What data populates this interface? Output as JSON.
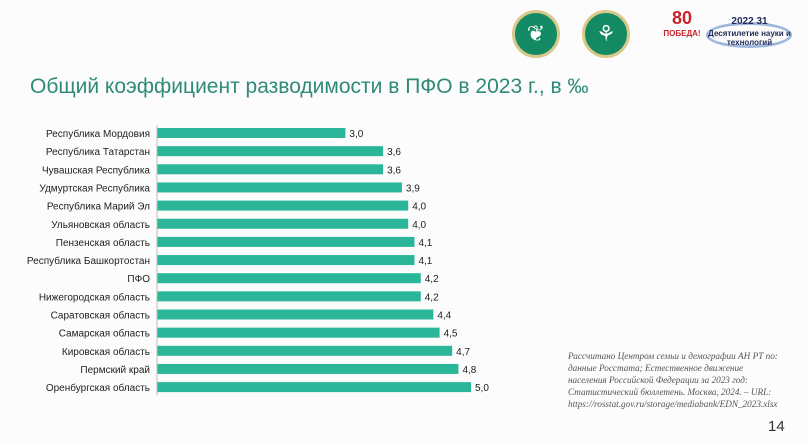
{
  "title": "Общий коэффициент разводимости в ПФО в 2023 г., в ‰",
  "logos": {
    "pobeda_number": "80",
    "pobeda_text": "ПОБЕДА!",
    "decade_years": "2022 31",
    "decade_text": "Десятилетие науки и технологий"
  },
  "chart_data": {
    "type": "bar",
    "orientation": "horizontal",
    "title": "Общий коэффициент разводимости в ПФО в 2023 г., в ‰",
    "categories": [
      "Республика Мордовия",
      "Республика Татарстан",
      "Чувашская Республика",
      "Удмуртская Республика",
      "Республика Марий Эл",
      "Ульяновская область",
      "Пензенская область",
      "Республика Башкортостан",
      "ПФО",
      "Нижегородская область",
      "Саратовская область",
      "Самарская область",
      "Кировская область",
      "Пермский край",
      "Оренбургская область"
    ],
    "values": [
      3.0,
      3.6,
      3.6,
      3.9,
      4.0,
      4.0,
      4.1,
      4.1,
      4.2,
      4.2,
      4.4,
      4.5,
      4.7,
      4.8,
      5.0
    ],
    "labels": [
      "3,0",
      "3,6",
      "3,6",
      "3,9",
      "4,0",
      "4,0",
      "4,1",
      "4,1",
      "4,2",
      "4,2",
      "4,4",
      "4,5",
      "4,7",
      "4,8",
      "5,0"
    ],
    "xlim": [
      0,
      5.0
    ],
    "grid": false,
    "color": "#2bb69a"
  },
  "source": "Рассчитано Центром семьи и демографии АН РТ по: данные Росстата; Естественное движение населения Российской Федерации за 2023 год: Статистический бюллетень. Москва, 2024. – URL: https://rosstat.gov.ru/storage/mediabank/EDN_2023.xlsx",
  "page_number": "14"
}
